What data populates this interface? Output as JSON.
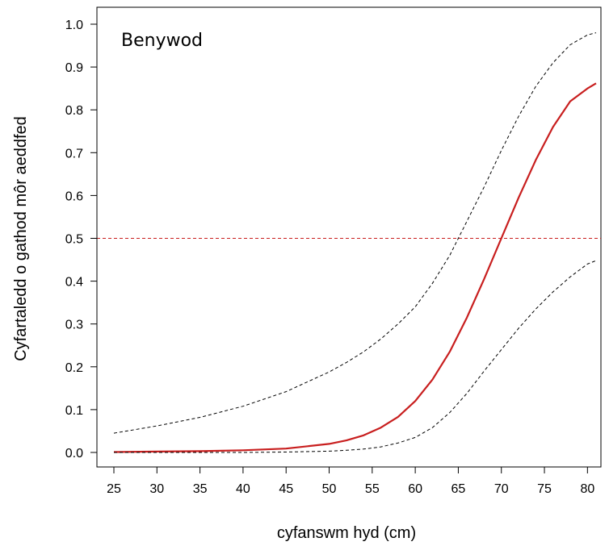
{
  "chart_data": {
    "type": "line",
    "title": "",
    "annotation": "Benywod",
    "xlabel": "cyfanswm hyd (cm)",
    "ylabel": "Cyfartaledd o gathod môr aeddfed",
    "xlim": [
      25,
      81
    ],
    "ylim": [
      0,
      1.0
    ],
    "x_ticks": [
      "25",
      "30",
      "35",
      "40",
      "45",
      "50",
      "55",
      "60",
      "65",
      "70",
      "75",
      "80"
    ],
    "x_tick_values": [
      25,
      30,
      35,
      40,
      45,
      50,
      55,
      60,
      65,
      70,
      75,
      80
    ],
    "y_ticks": [
      "0.0",
      "0.1",
      "0.2",
      "0.3",
      "0.4",
      "0.5",
      "0.6",
      "0.7",
      "0.8",
      "0.9",
      "1.0"
    ],
    "y_tick_values": [
      0.0,
      0.1,
      0.2,
      0.3,
      0.4,
      0.5,
      0.6,
      0.7,
      0.8,
      0.9,
      1.0
    ],
    "grid": false,
    "x": [
      25,
      30,
      35,
      40,
      45,
      50,
      52,
      54,
      56,
      58,
      60,
      62,
      64,
      66,
      68,
      70,
      72,
      74,
      76,
      78,
      80,
      81
    ],
    "series": [
      {
        "style": "solid",
        "color": "#c81e1e",
        "values": [
          0.001,
          0.002,
          0.003,
          0.005,
          0.009,
          0.02,
          0.028,
          0.04,
          0.058,
          0.083,
          0.12,
          0.17,
          0.235,
          0.315,
          0.405,
          0.5,
          0.595,
          0.683,
          0.76,
          0.82,
          0.85,
          0.862
        ]
      },
      {
        "style": "dashed",
        "color": "#000000",
        "values": [
          0.045,
          0.062,
          0.082,
          0.108,
          0.142,
          0.188,
          0.21,
          0.235,
          0.265,
          0.3,
          0.34,
          0.395,
          0.46,
          0.54,
          0.62,
          0.705,
          0.785,
          0.855,
          0.91,
          0.952,
          0.975,
          0.98
        ]
      },
      {
        "style": "dashed",
        "color": "#000000",
        "values": [
          0.0,
          0.0,
          0.0,
          0.0,
          0.001,
          0.003,
          0.005,
          0.008,
          0.013,
          0.022,
          0.035,
          0.058,
          0.093,
          0.138,
          0.19,
          0.24,
          0.29,
          0.335,
          0.375,
          0.41,
          0.44,
          0.448
        ]
      }
    ],
    "reference_lines": [
      {
        "axis": "y",
        "value": 0.5,
        "style": "dashed",
        "color": "#c81e1e"
      }
    ]
  }
}
